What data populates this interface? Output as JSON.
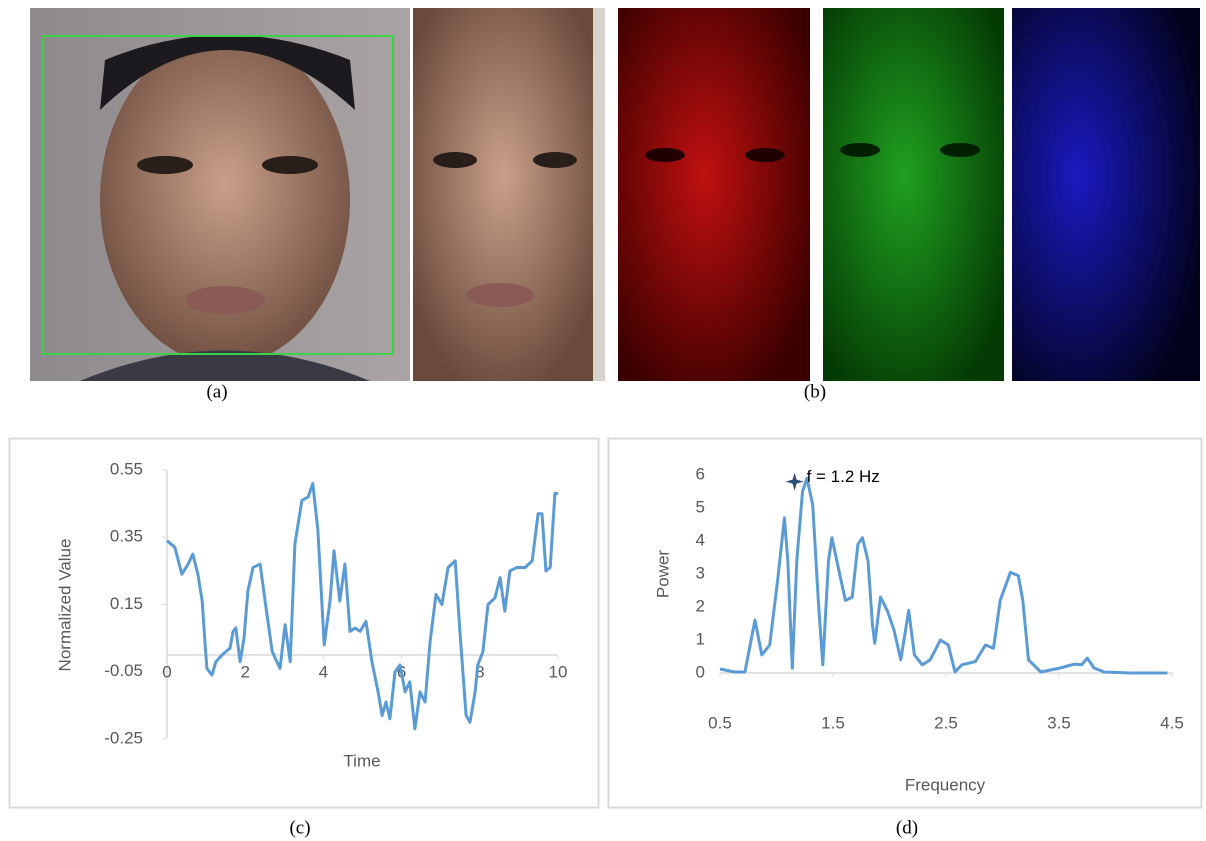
{
  "captions": [
    "(a)",
    "(b)",
    "(c)",
    "(d)"
  ],
  "chart_data": [
    {
      "type": "line",
      "x_label": "Time",
      "y_label": "Normalized Value",
      "xlim": [
        0,
        10
      ],
      "xticks": [
        0,
        2,
        4,
        6,
        8,
        10
      ],
      "ylim": [
        -0.25,
        0.55
      ],
      "yticks": [
        -0.25,
        -0.05,
        0.15,
        0.35,
        0.55
      ],
      "color": "#5b9bd5",
      "x": [
        0,
        0.2,
        0.38,
        0.54,
        0.66,
        0.79,
        0.9,
        0.97,
        1.02,
        1.15,
        1.25,
        1.41,
        1.61,
        1.69,
        1.76,
        1.87,
        1.97,
        2.07,
        2.2,
        2.38,
        2.51,
        2.69,
        2.89,
        3.02,
        3.15,
        3.27,
        3.45,
        3.61,
        3.73,
        3.86,
        4.02,
        4.17,
        4.27,
        4.42,
        4.55,
        4.68,
        4.81,
        4.94,
        5.09,
        5.24,
        5.4,
        5.5,
        5.6,
        5.7,
        5.83,
        5.96,
        6.09,
        6.21,
        6.34,
        6.47,
        6.6,
        6.73,
        6.88,
        7.03,
        7.19,
        7.37,
        7.49,
        7.65,
        7.75,
        7.88,
        7.95,
        8.08,
        8.21,
        8.39,
        8.52,
        8.64,
        8.77,
        8.95,
        9.16,
        9.34,
        9.49,
        9.59,
        9.69,
        9.8,
        9.92,
        10
      ],
      "values": [
        0.34,
        0.32,
        0.24,
        0.27,
        0.3,
        0.24,
        0.16,
        0.04,
        -0.04,
        -0.06,
        -0.02,
        0,
        0.02,
        0.07,
        0.08,
        -0.02,
        0.05,
        0.19,
        0.26,
        0.27,
        0.16,
        0.01,
        -0.04,
        0.09,
        -0.02,
        0.33,
        0.46,
        0.47,
        0.51,
        0.37,
        0.03,
        0.16,
        0.31,
        0.16,
        0.27,
        0.07,
        0.08,
        0.07,
        0.1,
        -0.02,
        -0.11,
        -0.18,
        -0.14,
        -0.19,
        -0.05,
        -0.03,
        -0.11,
        -0.08,
        -0.22,
        -0.11,
        -0.14,
        0.04,
        0.18,
        0.15,
        0.26,
        0.28,
        0.07,
        -0.18,
        -0.2,
        -0.11,
        -0.03,
        0.01,
        0.15,
        0.17,
        0.23,
        0.13,
        0.25,
        0.26,
        0.26,
        0.28,
        0.42,
        0.42,
        0.25,
        0.26,
        0.48,
        0.48
      ]
    },
    {
      "type": "line",
      "x_label": "Frequency",
      "y_label": "Power",
      "xlim": [
        0.5,
        4.5
      ],
      "xticks": [
        0.5,
        1.5,
        2.5,
        3.5,
        4.5
      ],
      "ylim": [
        0,
        6
      ],
      "yticks": [
        0,
        1,
        2,
        3,
        4,
        5,
        6
      ],
      "color": "#5b9bd5",
      "annotation": {
        "text": "f = 1.2 Hz",
        "x": 1.16,
        "y": 5.8
      },
      "x": [
        0.5,
        0.63,
        0.72,
        0.81,
        0.87,
        0.94,
        1.01,
        1.07,
        1.1,
        1.14,
        1.18,
        1.23,
        1.27,
        1.32,
        1.37,
        1.41,
        1.46,
        1.49,
        1.54,
        1.61,
        1.67,
        1.72,
        1.76,
        1.81,
        1.85,
        1.87,
        1.92,
        1.98,
        2.04,
        2.1,
        2.17,
        2.22,
        2.29,
        2.36,
        2.45,
        2.52,
        2.58,
        2.64,
        2.76,
        2.85,
        2.92,
        2.98,
        3.07,
        3.14,
        3.18,
        3.23,
        3.34,
        3.51,
        3.64,
        3.7,
        3.75,
        3.81,
        3.9,
        4.13,
        4.46
      ],
      "values": [
        0.12,
        0.03,
        0.03,
        1.6,
        0.55,
        0.85,
        2.8,
        4.7,
        3.4,
        0.15,
        3.4,
        5.5,
        5.9,
        5.1,
        2.2,
        0.25,
        3.4,
        4.1,
        3.3,
        2.2,
        2.3,
        3.9,
        4.1,
        3.4,
        1.45,
        0.9,
        2.3,
        1.9,
        1.3,
        0.4,
        1.9,
        0.55,
        0.25,
        0.4,
        1.0,
        0.85,
        0.03,
        0.25,
        0.35,
        0.85,
        0.75,
        2.2,
        3.05,
        2.95,
        2.2,
        0.4,
        0.03,
        0.15,
        0.27,
        0.25,
        0.45,
        0.15,
        0.03,
        0,
        0
      ]
    }
  ]
}
